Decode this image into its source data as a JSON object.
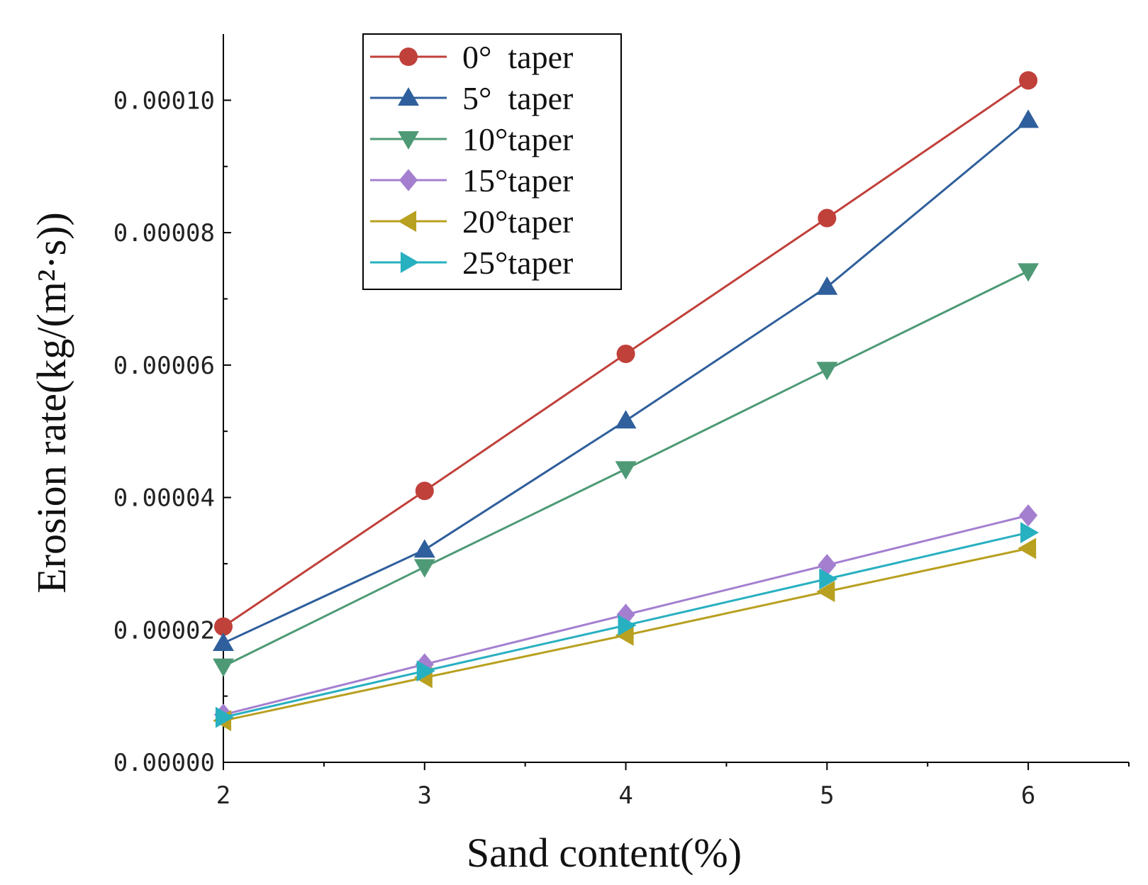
{
  "chart_data": {
    "type": "line",
    "title": "",
    "xlabel": "Sand content(%)",
    "ylabel": "Erosion rate(kg/(m²·s))",
    "x": [
      2,
      3,
      4,
      5,
      6
    ],
    "xlim": [
      2,
      6.5
    ],
    "ylim": [
      0,
      0.00011
    ],
    "x_ticks": [
      2,
      3,
      4,
      5,
      6
    ],
    "x_tick_labels": [
      "2",
      "3",
      "4",
      "5",
      "6"
    ],
    "y_ticks": [
      0,
      2e-05,
      4e-05,
      6e-05,
      8e-05,
      0.0001
    ],
    "y_tick_labels": [
      "0.00000",
      "0.00002",
      "0.00004",
      "0.00006",
      "0.00008",
      "0.00010"
    ],
    "grid": false,
    "legend_position": "top-left",
    "series": [
      {
        "name": "0°  taper",
        "marker": "circle",
        "color": "#c0403a",
        "values": [
          2.05e-05,
          4.1e-05,
          6.17e-05,
          8.22e-05,
          0.000103
        ]
      },
      {
        "name": "5°  taper",
        "marker": "triangle-up",
        "color": "#2f5f9c",
        "values": [
          1.8e-05,
          3.21e-05,
          5.16e-05,
          7.18e-05,
          9.7e-05
        ]
      },
      {
        "name": "10°taper",
        "marker": "triangle-down",
        "color": "#4e9a76",
        "values": [
          1.45e-05,
          2.95e-05,
          4.43e-05,
          5.93e-05,
          7.42e-05
        ]
      },
      {
        "name": "15°taper",
        "marker": "diamond",
        "color": "#a47fd0",
        "values": [
          7.2e-06,
          1.48e-05,
          2.23e-05,
          2.98e-05,
          3.73e-05
        ]
      },
      {
        "name": "20°taper",
        "marker": "triangle-left",
        "color": "#b8a020",
        "values": [
          6.3e-06,
          1.28e-05,
          1.92e-05,
          2.58e-05,
          3.23e-05
        ]
      },
      {
        "name": "25°taper",
        "marker": "triangle-right",
        "color": "#27b0c0",
        "values": [
          6.8e-06,
          1.38e-05,
          2.07e-05,
          2.77e-05,
          3.47e-05
        ]
      }
    ]
  }
}
